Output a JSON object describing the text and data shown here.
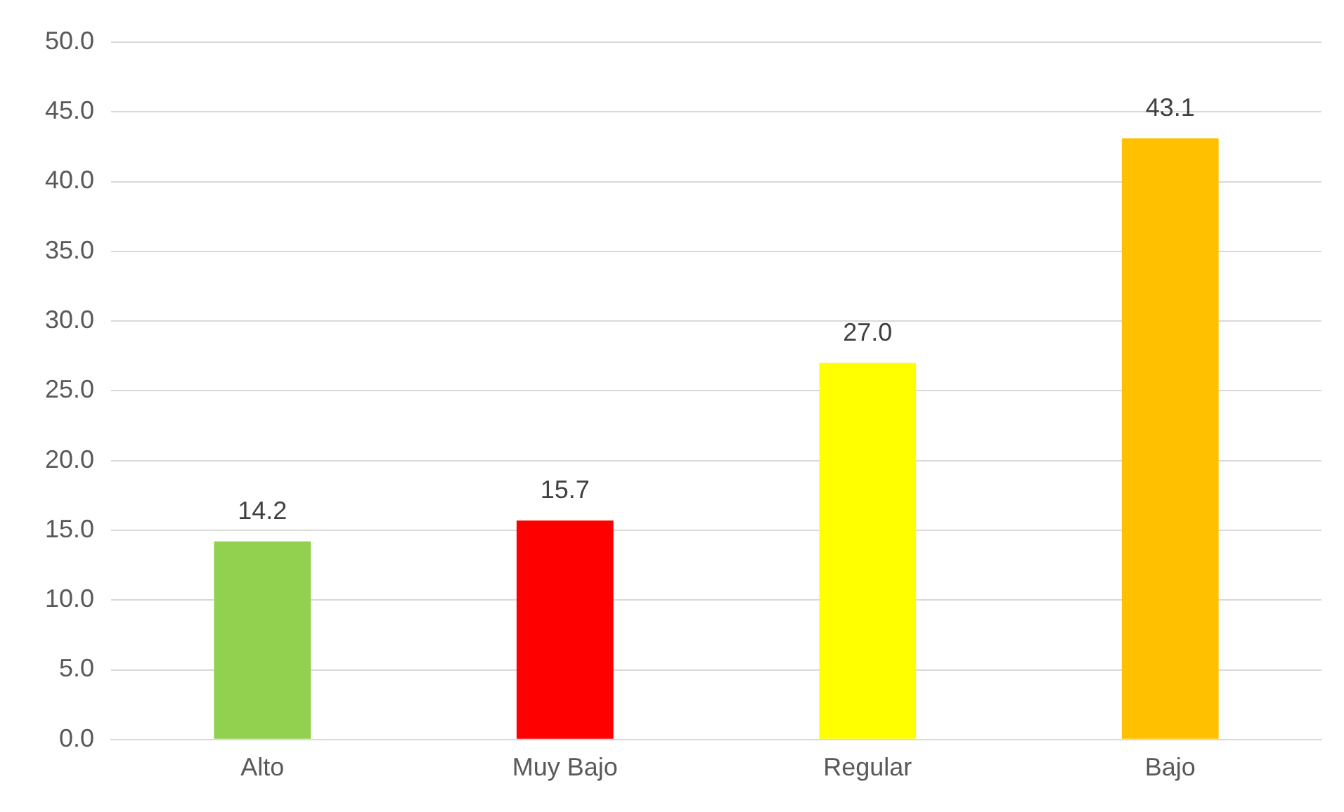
{
  "chart_data": {
    "type": "bar",
    "categories": [
      "Alto",
      "Muy Bajo",
      "Regular",
      "Bajo"
    ],
    "values": [
      14.2,
      15.7,
      27.0,
      43.1
    ],
    "colors": [
      "#92d050",
      "#ff0000",
      "#ffff00",
      "#ffc000"
    ],
    "value_labels": [
      "14.2",
      "15.7",
      "27.0",
      "43.1"
    ],
    "ylim": [
      0,
      50
    ],
    "yticks": [
      {
        "value": 0,
        "label": "0.0"
      },
      {
        "value": 5,
        "label": "5.0"
      },
      {
        "value": 10,
        "label": "10.0"
      },
      {
        "value": 15,
        "label": "15.0"
      },
      {
        "value": 20,
        "label": "20.0"
      },
      {
        "value": 25,
        "label": "25.0"
      },
      {
        "value": 30,
        "label": "30.0"
      },
      {
        "value": 35,
        "label": "35.0"
      },
      {
        "value": 40,
        "label": "40.0"
      },
      {
        "value": 45,
        "label": "45.0"
      },
      {
        "value": 50,
        "label": "50.0"
      }
    ],
    "grid": "y"
  }
}
